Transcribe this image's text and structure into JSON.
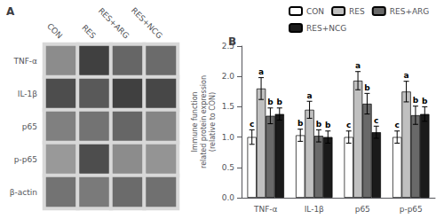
{
  "chart_data": [
    {
      "type": "heatmap",
      "title": "A",
      "categories": [
        "CON",
        "RES",
        "RES+ARG",
        "RES+NCG"
      ],
      "rows": [
        "TNF-α",
        "IL-1β",
        "p65",
        "p-p65",
        "β-actin"
      ],
      "cells": [
        [
          0.55,
          0.25,
          0.4,
          0.42
        ],
        [
          0.3,
          0.35,
          0.25,
          0.28
        ],
        [
          0.5,
          0.45,
          0.4,
          0.52
        ],
        [
          0.6,
          0.3,
          0.55,
          0.58
        ],
        [
          0.45,
          0.48,
          0.42,
          0.44
        ]
      ],
      "zlim": [
        0,
        1
      ]
    },
    {
      "type": "bar",
      "title": "B",
      "categories": [
        "TNF-α",
        "IL-1β",
        "p65",
        "p-p65"
      ],
      "ylabel": "Immune function\nrelated protein expression\n(relative to CON)",
      "ylim": [
        0.0,
        2.5
      ],
      "yticks": [
        {
          "value": 0,
          "label": "0.0"
        },
        0.5,
        {
          "value": 1,
          "label": "1.0"
        },
        1.5,
        {
          "value": 2,
          "label": "2.0"
        },
        2.5
      ],
      "grid": false,
      "legend": "top",
      "series": [
        {
          "name": "CON",
          "color": "#ffffff",
          "values": [
            1.0,
            1.03,
            1.0,
            1.0
          ],
          "errors": [
            0.12,
            0.1,
            0.1,
            0.1
          ],
          "letters": [
            "c",
            "b",
            "c",
            "c"
          ]
        },
        {
          "name": "RES",
          "color": "#c0c0c0",
          "values": [
            1.8,
            1.45,
            1.93,
            1.75
          ],
          "errors": [
            0.18,
            0.14,
            0.15,
            0.17
          ],
          "letters": [
            "a",
            "a",
            "a",
            "a"
          ]
        },
        {
          "name": "RES+ARG",
          "color": "#696969",
          "values": [
            1.35,
            1.02,
            1.55,
            1.36
          ],
          "errors": [
            0.13,
            0.1,
            0.17,
            0.15
          ],
          "letters": [
            "b",
            "b",
            "b",
            "b"
          ]
        },
        {
          "name": "RES+NCG",
          "color": "#1a1a1a",
          "values": [
            1.38,
            1.0,
            1.08,
            1.38
          ],
          "errors": [
            0.1,
            0.1,
            0.1,
            0.12
          ],
          "letters": [
            "b",
            "b",
            "c",
            "b"
          ]
        }
      ]
    }
  ]
}
